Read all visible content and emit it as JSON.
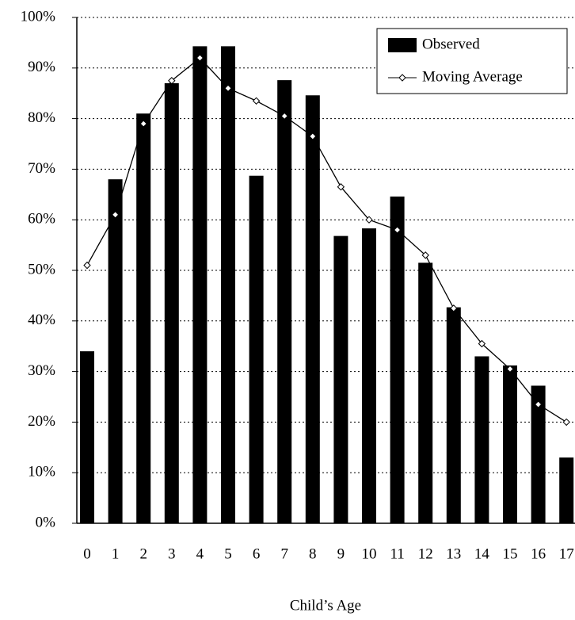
{
  "chart_data": {
    "type": "bar+line",
    "x_label": "Child’s Age",
    "categories": [
      "0",
      "1",
      "2",
      "3",
      "4",
      "5",
      "6",
      "7",
      "8",
      "9",
      "10",
      "11",
      "12",
      "13",
      "14",
      "15",
      "16",
      "17"
    ],
    "series": [
      {
        "name": "Observed",
        "type": "bar",
        "color": "#000000",
        "values": [
          34,
          68,
          81,
          87,
          94.3,
          94.3,
          68.7,
          87.6,
          84.6,
          56.8,
          58.3,
          64.6,
          51.5,
          42.7,
          33,
          31.2,
          27.2,
          13
        ]
      },
      {
        "name": "Moving Average",
        "type": "line",
        "color": "#000000",
        "values": [
          51,
          61,
          79,
          87.5,
          92,
          86,
          83.5,
          80.5,
          76.5,
          66.5,
          60,
          58,
          53,
          42.5,
          35.5,
          30.5,
          23.5,
          20
        ]
      }
    ],
    "ylim": [
      0,
      100
    ],
    "yticks": [
      {
        "value": 0,
        "label": "0%"
      },
      {
        "value": 10,
        "label": "10%"
      },
      {
        "value": 20,
        "label": "20%"
      },
      {
        "value": 30,
        "label": "30%"
      },
      {
        "value": 40,
        "label": "40%"
      },
      {
        "value": 50,
        "label": "50%"
      },
      {
        "value": 60,
        "label": "60%"
      },
      {
        "value": 70,
        "label": "70%"
      },
      {
        "value": 80,
        "label": "80%"
      },
      {
        "value": 90,
        "label": "90%"
      },
      {
        "value": 100,
        "label": "100%"
      }
    ],
    "grid": true,
    "legend": "top-right"
  }
}
